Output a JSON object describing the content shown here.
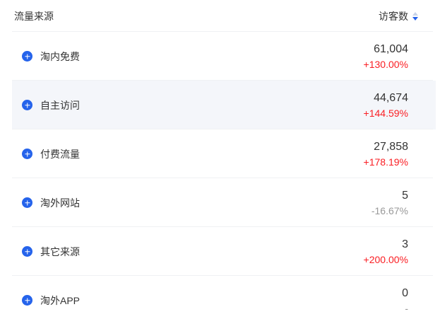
{
  "table": {
    "columns": {
      "source": "流量来源",
      "visitors": "访客数"
    },
    "sort": {
      "column": "访客数",
      "direction": "descending"
    },
    "rows": [
      {
        "name": "淘内免费",
        "value": "61,004",
        "change": "+130.00%",
        "change_type": "up",
        "highlighted": false
      },
      {
        "name": "自主访问",
        "value": "44,674",
        "change": "+144.59%",
        "change_type": "up",
        "highlighted": true
      },
      {
        "name": "付费流量",
        "value": "27,858",
        "change": "+178.19%",
        "change_type": "up",
        "highlighted": false
      },
      {
        "name": "淘外网站",
        "value": "5",
        "change": "-16.67%",
        "change_type": "neutral",
        "highlighted": false
      },
      {
        "name": "其它来源",
        "value": "3",
        "change": "+200.00%",
        "change_type": "up",
        "highlighted": false
      },
      {
        "name": "淘外APP",
        "value": "0",
        "change": "-",
        "change_type": "neutral",
        "highlighted": false
      }
    ]
  },
  "icons": {
    "row_expand": "plus-circle-icon",
    "sort": "caret-up-down-icon"
  },
  "colors": {
    "accent_blue": "#2563EB",
    "up_red": "#FA1E23",
    "neutral_gray": "#999999",
    "text_dark": "#333333",
    "row_highlight": "#F4F6FA",
    "divider": "#F0F1F3",
    "sort_inactive": "#C8D3E8"
  }
}
